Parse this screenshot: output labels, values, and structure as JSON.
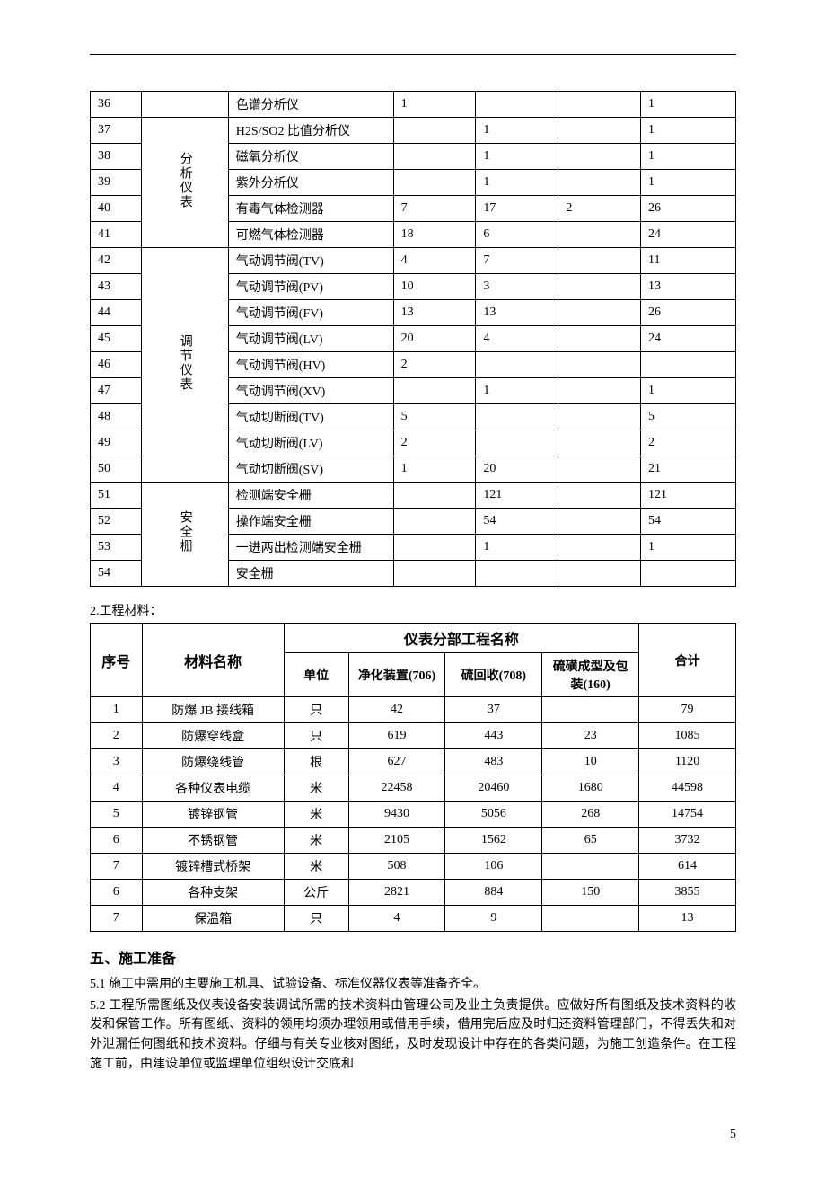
{
  "colors": {
    "text": "#000000",
    "background": "#ffffff",
    "border": "#000000"
  },
  "fonts": {
    "body_family": "SimSun",
    "body_size_pt": 10.5,
    "heading_size_pt": 12
  },
  "table1": {
    "col_widths_pct": [
      8,
      12,
      26,
      13,
      13,
      13,
      15
    ],
    "rows": [
      {
        "n": "36",
        "group": "",
        "group_rowspan": 1,
        "item": "色谱分析仪",
        "c1": "1",
        "c2": "",
        "c3": "",
        "total": "1"
      },
      {
        "n": "37",
        "group": "分析仪表",
        "group_rowspan": 5,
        "item": "H2S/SO2 比值分析仪",
        "c1": "",
        "c2": "1",
        "c3": "",
        "total": "1"
      },
      {
        "n": "38",
        "item": "磁氧分析仪",
        "c1": "",
        "c2": "1",
        "c3": "",
        "total": "1"
      },
      {
        "n": "39",
        "item": "紫外分析仪",
        "c1": "",
        "c2": "1",
        "c3": "",
        "total": "1"
      },
      {
        "n": "40",
        "item": "有毒气体检测器",
        "c1": "7",
        "c2": "17",
        "c3": "2",
        "total": "26"
      },
      {
        "n": "41",
        "item": "可燃气体检测器",
        "c1": "18",
        "c2": "6",
        "c3": "",
        "total": "24"
      },
      {
        "n": "42",
        "group": "调节仪表",
        "group_rowspan": 9,
        "item": "气动调节阀(TV)",
        "c1": "4",
        "c2": "7",
        "c3": "",
        "total": "11"
      },
      {
        "n": "43",
        "item": "气动调节阀(PV)",
        "c1": "10",
        "c2": "3",
        "c3": "",
        "total": "13"
      },
      {
        "n": "44",
        "item": "气动调节阀(FV)",
        "c1": "13",
        "c2": "13",
        "c3": "",
        "total": "26"
      },
      {
        "n": "45",
        "item": "气动调节阀(LV)",
        "c1": "20",
        "c2": "4",
        "c3": "",
        "total": "24"
      },
      {
        "n": "46",
        "item": "气动调节阀(HV)",
        "c1": "2",
        "c2": "",
        "c3": "",
        "total": ""
      },
      {
        "n": "47",
        "item": "气动调节阀(XV)",
        "c1": "",
        "c2": "1",
        "c3": "",
        "total": "1"
      },
      {
        "n": "48",
        "item": "气动切断阀(TV)",
        "c1": "5",
        "c2": "",
        "c3": "",
        "total": "5"
      },
      {
        "n": "49",
        "item": "气动切断阀(LV)",
        "c1": "2",
        "c2": "",
        "c3": "",
        "total": "2"
      },
      {
        "n": "50",
        "item": "气动切断阀(SV)",
        "c1": "1",
        "c2": "20",
        "c3": "",
        "total": "21"
      },
      {
        "n": "51",
        "group": "安全栅",
        "group_rowspan": 4,
        "item": "检测端安全栅",
        "c1": "",
        "c2": "121",
        "c3": "",
        "total": "121"
      },
      {
        "n": "52",
        "item": "操作端安全栅",
        "c1": "",
        "c2": "54",
        "c3": "",
        "total": "54"
      },
      {
        "n": "53",
        "item": "一进两出检测端安全栅",
        "c1": "",
        "c2": "1",
        "c3": "",
        "total": "1"
      },
      {
        "n": "54",
        "item": "安全栅",
        "c1": "",
        "c2": "",
        "c3": "",
        "total": ""
      }
    ]
  },
  "text": {
    "mat_label": "2.工程材料：",
    "heading5": "五、施工准备",
    "p1": "5.1 施工中需用的主要施工机具、试验设备、标准仪器仪表等准备齐全。",
    "p2": "5.2 工程所需图纸及仪表设备安装调试所需的技术资料由管理公司及业主负责提供。应做好所有图纸及技术资料的收发和保管工作。所有图纸、资料的领用均须办理领用或借用手续，借用完后应及时归还资料管理部门，不得丢失和对外泄漏任何图纸和技术资料。仔细与有关专业核对图纸，及时发现设计中存在的各类问题，为施工创造条件。在工程施工前，由建设单位或监理单位组织设计交底和"
  },
  "table2": {
    "header": {
      "seq": "序号",
      "name": "材料名称",
      "group": "仪表分部工程名称",
      "unit": "单位",
      "c1": "净化装置(706)",
      "c2": "硫回收(708)",
      "c3": "硫磺成型及包装(160)",
      "total": "合计"
    },
    "col_widths_pct": [
      8,
      22,
      10,
      15,
      15,
      15,
      15
    ],
    "rows": [
      {
        "n": "1",
        "name": "防爆 JB 接线箱",
        "unit": "只",
        "c1": "42",
        "c2": "37",
        "c3": "",
        "total": "79"
      },
      {
        "n": "2",
        "name": "防爆穿线盒",
        "unit": "只",
        "c1": "619",
        "c2": "443",
        "c3": "23",
        "total": "1085"
      },
      {
        "n": "3",
        "name": "防爆绕线管",
        "unit": "根",
        "c1": "627",
        "c2": "483",
        "c3": "10",
        "total": "1120"
      },
      {
        "n": "4",
        "name": "各种仪表电缆",
        "unit": "米",
        "c1": "22458",
        "c2": "20460",
        "c3": "1680",
        "total": "44598"
      },
      {
        "n": "5",
        "name": "镀锌钢管",
        "unit": "米",
        "c1": "9430",
        "c2": "5056",
        "c3": "268",
        "total": "14754"
      },
      {
        "n": "6",
        "name": "不锈钢管",
        "unit": "米",
        "c1": "2105",
        "c2": "1562",
        "c3": "65",
        "total": "3732"
      },
      {
        "n": "7",
        "name": "镀锌槽式桥架",
        "unit": "米",
        "c1": "508",
        "c2": "106",
        "c3": "",
        "total": "614"
      },
      {
        "n": "6",
        "name": "各种支架",
        "unit": "公斤",
        "c1": "2821",
        "c2": "884",
        "c3": "150",
        "total": "3855"
      },
      {
        "n": "7",
        "name": "保温箱",
        "unit": "只",
        "c1": "4",
        "c2": "9",
        "c3": "",
        "total": "13"
      }
    ]
  },
  "page_number": "5"
}
